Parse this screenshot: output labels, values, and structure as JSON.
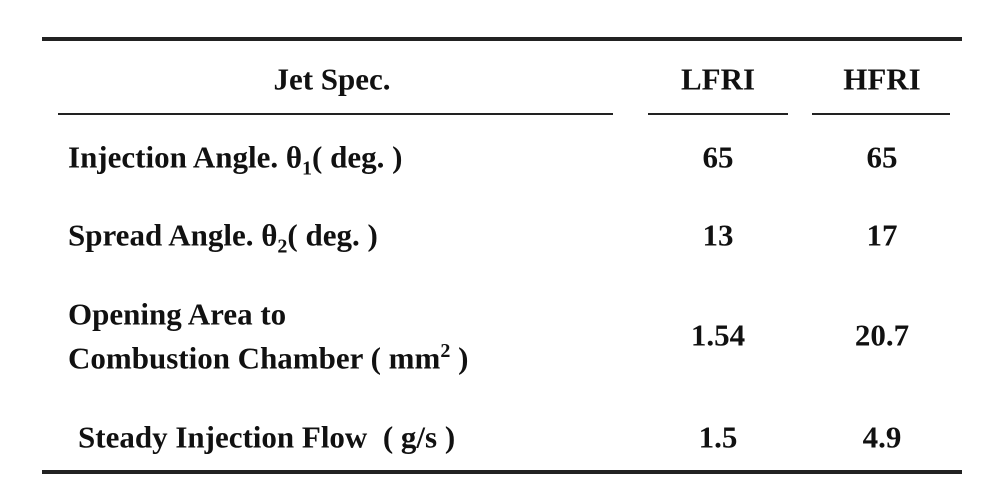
{
  "table": {
    "header": [
      "Jet Spec.",
      "LFRI",
      "HFRI"
    ],
    "rows": [
      {
        "label": {
          "text": "Injection Angle. θ",
          "sub": "1",
          "after": "( deg. )"
        },
        "values": [
          "65",
          "65"
        ]
      },
      {
        "label": {
          "text": "Spread Angle. θ",
          "sub": "2",
          "after": "( deg. )"
        },
        "values": [
          "13",
          "17"
        ]
      },
      {
        "label": {
          "line1": "Opening Area to",
          "text": "Combustion Chamber ( mm",
          "sup": "2",
          "after": " )"
        },
        "values": [
          "1.54",
          "20.7"
        ]
      },
      {
        "label": {
          "text": "Steady Injection Flow  ( g/s )"
        },
        "values": [
          "1.5",
          "4.9"
        ]
      }
    ]
  }
}
